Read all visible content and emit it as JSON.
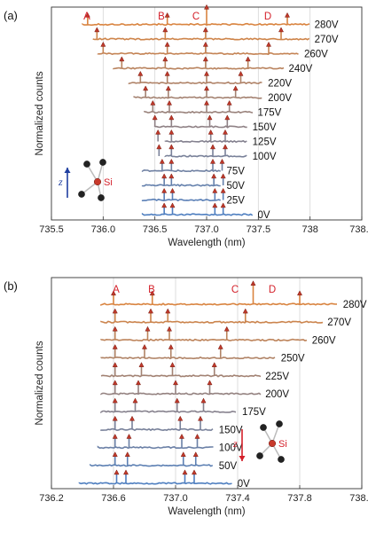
{
  "chart_data": [
    {
      "type": "line",
      "panel_label": "(a)",
      "xlabel": "Wavelength (nm)",
      "ylabel": "Normalized counts",
      "xlim": [
        735.5,
        738.5
      ],
      "xticks": [
        "735.5",
        "736.0",
        "736.5",
        "737.0",
        "737.5",
        "738",
        "738.5"
      ],
      "peak_labels": [
        {
          "name": "A",
          "x": 735.85
        },
        {
          "name": "B",
          "x": 736.62
        },
        {
          "name": "C",
          "x": 737.0
        },
        {
          "name": "D",
          "x": 737.78
        }
      ],
      "inset": {
        "axis": "z",
        "atom": "Si"
      },
      "series": [
        {
          "name": "0V",
          "x_start": 736.38,
          "x_end": 737.45,
          "peaks": [
            736.59,
            736.67,
            737.08,
            737.16
          ]
        },
        {
          "name": "25V",
          "x_start": 736.38,
          "x_end": 737.15,
          "peaks": [
            736.59,
            736.67,
            737.08,
            737.16
          ]
        },
        {
          "name": "50V",
          "x_start": 736.38,
          "x_end": 737.15,
          "peaks": [
            736.59,
            736.66,
            737.07,
            737.16
          ]
        },
        {
          "name": "75V",
          "x_start": 736.38,
          "x_end": 737.15,
          "peaks": [
            736.57,
            736.66,
            737.06,
            737.15
          ]
        },
        {
          "name": "100V",
          "x_start": 736.6,
          "x_end": 737.4,
          "peaks": [
            736.54,
            736.66,
            737.06,
            737.18
          ]
        },
        {
          "name": "125V",
          "x_start": 736.6,
          "x_end": 737.4,
          "peaks": [
            736.53,
            736.66,
            737.04,
            737.18
          ]
        },
        {
          "name": "150V",
          "x_start": 736.5,
          "x_end": 737.4,
          "peaks": [
            736.5,
            736.66,
            737.03,
            737.2
          ]
        },
        {
          "name": "175V",
          "x_start": 736.4,
          "x_end": 737.45,
          "peaks": [
            736.48,
            736.64,
            737.0,
            737.22
          ]
        },
        {
          "name": "200V",
          "x_start": 736.3,
          "x_end": 737.55,
          "peaks": [
            736.41,
            736.63,
            737.0,
            737.28
          ]
        },
        {
          "name": "220V",
          "x_start": 736.25,
          "x_end": 737.55,
          "peaks": [
            736.36,
            736.62,
            737.0,
            737.33
          ]
        },
        {
          "name": "240V",
          "x_start": 736.1,
          "x_end": 737.75,
          "peaks": [
            736.18,
            736.6,
            736.99,
            737.4
          ]
        },
        {
          "name": "260V",
          "x_start": 735.95,
          "x_end": 737.9,
          "peaks": [
            736.0,
            736.62,
            736.99,
            737.6
          ]
        },
        {
          "name": "270V",
          "x_start": 735.9,
          "x_end": 738.0,
          "peaks": [
            735.94,
            736.6,
            736.99,
            737.72
          ]
        },
        {
          "name": "280V",
          "x_start": 735.8,
          "x_end": 738.0,
          "peaks": [
            735.85,
            736.62,
            737.0,
            737.78
          ]
        }
      ]
    },
    {
      "type": "line",
      "panel_label": "(b)",
      "xlabel": "Wavelength (nm)",
      "ylabel": "Normalized counts",
      "xlim": [
        736.2,
        738.2
      ],
      "xticks": [
        "736.2",
        "736.6",
        "737.0",
        "737.4",
        "737.8",
        "738.2"
      ],
      "peak_labels": [
        {
          "name": "A",
          "x": 736.6
        },
        {
          "name": "B",
          "x": 736.85
        },
        {
          "name": "C",
          "x": 737.5
        },
        {
          "name": "D",
          "x": 737.8
        }
      ],
      "inset": {
        "axis": "z",
        "atom": "Si"
      },
      "series": [
        {
          "name": "0V",
          "x_start": 736.38,
          "x_end": 737.37,
          "peaks": [
            736.62,
            736.68,
            737.06,
            737.12
          ]
        },
        {
          "name": "50V",
          "x_start": 736.45,
          "x_end": 737.25,
          "peaks": [
            736.61,
            736.69,
            737.05,
            737.13
          ]
        },
        {
          "name": "100V",
          "x_start": 736.5,
          "x_end": 737.25,
          "peaks": [
            736.61,
            736.7,
            737.04,
            737.14
          ]
        },
        {
          "name": "150V",
          "x_start": 736.52,
          "x_end": 737.25,
          "peaks": [
            736.61,
            736.72,
            737.03,
            737.16
          ]
        },
        {
          "name": "175V",
          "x_start": 736.52,
          "x_end": 737.4,
          "peaks": [
            736.61,
            736.74,
            737.01,
            737.18
          ]
        },
        {
          "name": "200V",
          "x_start": 736.52,
          "x_end": 737.55,
          "peaks": [
            736.61,
            736.76,
            737.0,
            737.22
          ]
        },
        {
          "name": "225V",
          "x_start": 736.52,
          "x_end": 737.55,
          "peaks": [
            736.61,
            736.78,
            736.98,
            737.25
          ]
        },
        {
          "name": "250V",
          "x_start": 736.52,
          "x_end": 737.65,
          "peaks": [
            736.61,
            736.8,
            736.97,
            737.29
          ]
        },
        {
          "name": "260V",
          "x_start": 736.52,
          "x_end": 737.85,
          "peaks": [
            736.61,
            736.82,
            736.96,
            737.33
          ]
        },
        {
          "name": "270V",
          "x_start": 736.52,
          "x_end": 737.95,
          "peaks": [
            736.61,
            736.84,
            736.95,
            737.45
          ]
        },
        {
          "name": "280V",
          "x_start": 736.52,
          "x_end": 738.05,
          "peaks": [
            736.6,
            736.85,
            737.5,
            737.8
          ]
        }
      ]
    }
  ],
  "colors": {
    "low_voltage": "#4f7fc0",
    "high_voltage": "#d98440",
    "marker": "#c0392b",
    "peak_label": "#d4202a",
    "gridline": "#d6d6d6",
    "z_arrow_a": "#1f3fa0",
    "z_arrow_b": "#d4202a"
  }
}
